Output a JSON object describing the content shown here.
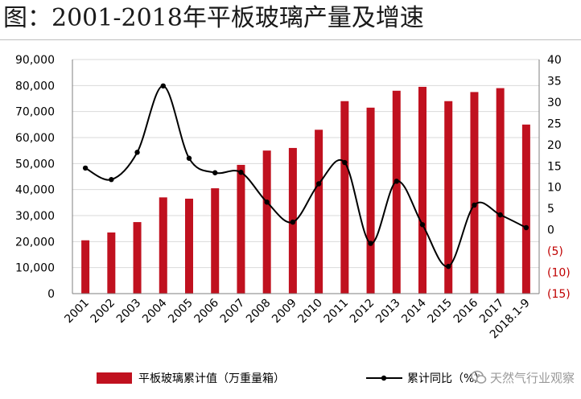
{
  "title": "图：2001-2018年平板玻璃产量及增速",
  "chart_data": {
    "type": "bar+line",
    "categories": [
      "2001",
      "2002",
      "2003",
      "2004",
      "2005",
      "2006",
      "2007",
      "2008",
      "2009",
      "2010",
      "2011",
      "2012",
      "2013",
      "2014",
      "2015",
      "2016",
      "2017",
      "2018.1-9"
    ],
    "series": [
      {
        "name": "平板玻璃累计值（万重量箱）",
        "type": "bar",
        "axis": "left",
        "values": [
          20500,
          23500,
          27500,
          37000,
          36500,
          40500,
          49500,
          55000,
          56000,
          63000,
          74000,
          71500,
          78000,
          79500,
          74000,
          77500,
          79000,
          65000
        ]
      },
      {
        "name": "累计同比（%）",
        "type": "line",
        "axis": "right",
        "values": [
          14.5,
          11.8,
          18.2,
          33.8,
          16.8,
          13.4,
          13.5,
          6.5,
          1.8,
          10.8,
          15.8,
          -3.2,
          11.4,
          1.2,
          -8.6,
          5.8,
          3.5,
          0.5
        ]
      }
    ],
    "y_left": {
      "min": 0,
      "max": 90000,
      "step": 10000,
      "ticks": [
        "0",
        "10,000",
        "20,000",
        "30,000",
        "40,000",
        "50,000",
        "60,000",
        "70,000",
        "80,000",
        "90,000"
      ]
    },
    "y_right": {
      "min": -15,
      "max": 40,
      "step": 5,
      "ticks": [
        "(15)",
        "(10)",
        "(5)",
        "0",
        "5",
        "10",
        "15",
        "20",
        "25",
        "30",
        "35",
        "40"
      ]
    },
    "grid": true,
    "legend_position": "bottom"
  },
  "watermark": "天然气行业观察",
  "colors": {
    "bar": "#c0111f",
    "line": "#000000",
    "negative_tick": "#c00000",
    "grid": "#d9d9d9",
    "axis": "#7f7f7f"
  }
}
